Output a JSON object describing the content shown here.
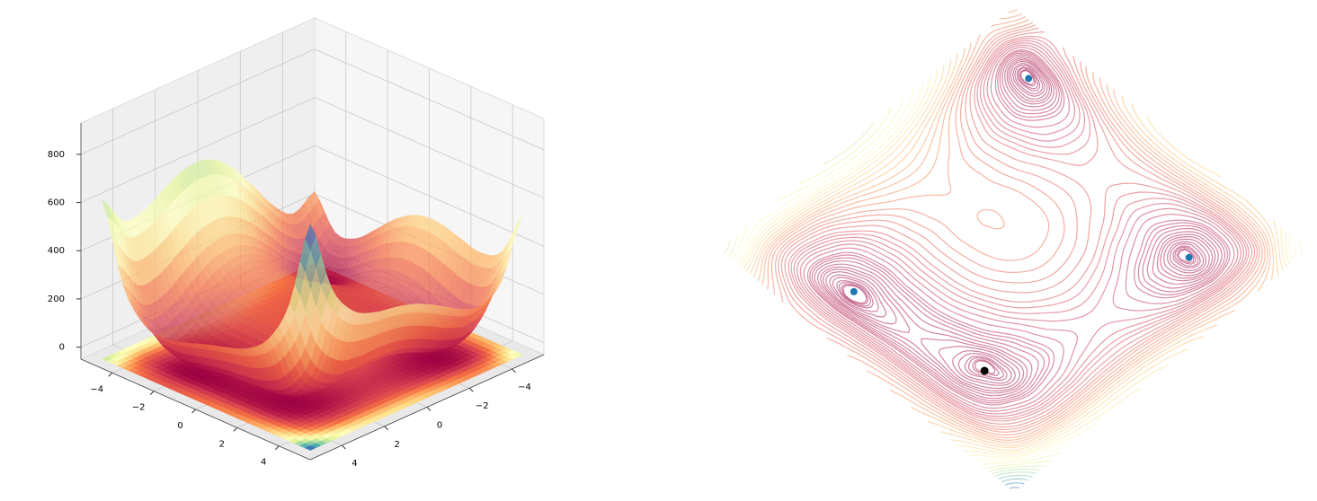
{
  "chart_data": [
    {
      "type": "surface3d",
      "x": [
        -5,
        -4,
        -3,
        -2,
        -1,
        0,
        1,
        2,
        3,
        4,
        5
      ],
      "y": [
        -5,
        -4,
        -3,
        -2,
        -1,
        0,
        1,
        2,
        3,
        4,
        5
      ],
      "z": [
        [
          250,
          196,
          274,
          400,
          514,
          580,
          586,
          544,
          490,
          484,
          610
        ],
        [
          116,
          26,
          72,
          170,
          260,
          306,
          296,
          242,
          180,
          170,
          296
        ],
        [
          130,
          8,
          26,
          100,
          170,
          200,
          178,
          116,
          50,
          40,
          170
        ],
        [
          208,
          58,
          52,
          106,
          160,
          178,
          148,
          82,
          16,
          10,
          148
        ],
        [
          290,
          116,
          90,
          128,
          170,
          180,
          146,
          80,
          18,
          20,
          170
        ],
        [
          340,
          146,
          104,
          130,
          164,
          170,
          136,
          74,
          20,
          34,
          200
        ],
        [
          346,
          136,
          82,
          100,
          130,
          136,
          106,
          52,
          10,
          40,
          226
        ],
        [
          320,
          98,
          36,
          50,
          80,
          90,
          68,
          26,
          0,
          50,
          260
        ],
        [
          298,
          68,
          2,
          16,
          50,
          68,
          58,
          32,
          26,
          100,
          338
        ],
        [
          340,
          106,
          40,
          58,
          100,
          130,
          136,
          130,
          148,
          250,
          520
        ],
        [
          530,
          296,
          234,
          260,
          314,
          360,
          386,
          404,
          450,
          584,
          890
        ]
      ],
      "xlim": [
        -5.5,
        5.5
      ],
      "ylim": [
        -5.5,
        5.5
      ],
      "zlim": [
        -50,
        930
      ],
      "xticks": [
        {
          "value": -4,
          "label": "−4"
        },
        {
          "value": -2,
          "label": "−2"
        },
        0,
        2,
        4
      ],
      "yticks": [
        {
          "value": -4,
          "label": "−4"
        },
        {
          "value": -2,
          "label": "−2"
        },
        0,
        2,
        4
      ],
      "zticks": [
        0,
        200,
        400,
        600,
        800
      ],
      "colormap": [
        "#9e0142",
        "#d53e4f",
        "#f46d43",
        "#fdae61",
        "#fee08b",
        "#ffffbf",
        "#e6f598",
        "#abdda4",
        "#66c2a5",
        "#3288bd",
        "#5e4fa2"
      ],
      "points": {
        "x": [
          3,
          -2.805,
          -3.779,
          3.584
        ],
        "y": [
          2,
          3.131,
          -3.283,
          -1.848
        ],
        "color": "#7b1f45"
      }
    },
    {
      "type": "contour",
      "levels": [
        0.5,
        1,
        2,
        3,
        5,
        7,
        10,
        13,
        16,
        20,
        25,
        30,
        35,
        40,
        50,
        60,
        70,
        80,
        90,
        100,
        115,
        130,
        145,
        160,
        180,
        200,
        220,
        240,
        265,
        290,
        320,
        350,
        380,
        410,
        450,
        490,
        530,
        570,
        610,
        650,
        700,
        750,
        800,
        850
      ],
      "series": [
        {
          "color": "#1f77b4",
          "x": [
            3,
            -2.805,
            -3.779,
            3.584
          ],
          "y": [
            2,
            3.131,
            -3.283,
            -1.848
          ]
        },
        {
          "color": "#000000",
          "x": [
            3
          ],
          "y": [
            2
          ]
        }
      ]
    }
  ]
}
